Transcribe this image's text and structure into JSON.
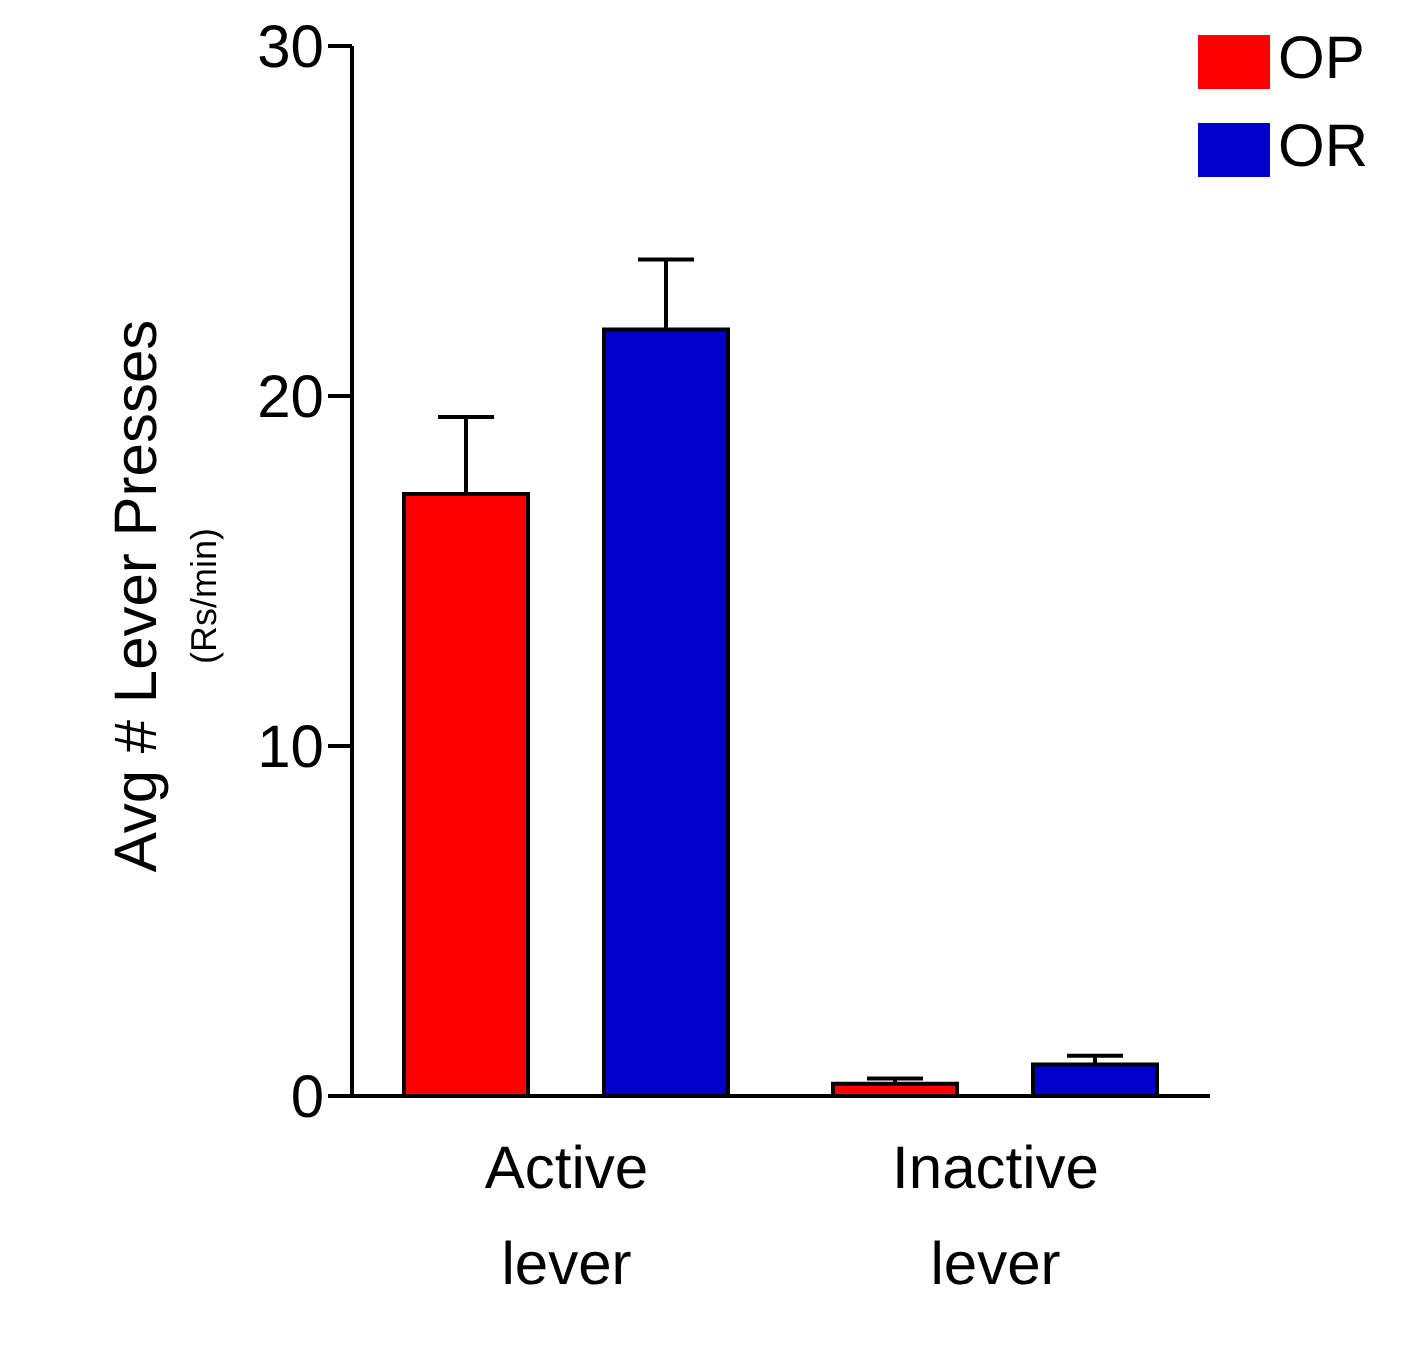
{
  "chart_data": {
    "type": "bar",
    "ylabel": "Avg # Lever Presses\n(Rs/min)",
    "categories": [
      "Active lever",
      "Inactive lever"
    ],
    "series": [
      {
        "name": "OP",
        "color": "#ff0000",
        "values": [
          17.2,
          0.35
        ],
        "errors": [
          [
            17.2,
            19.4
          ],
          [
            0.35,
            0.5
          ]
        ]
      },
      {
        "name": "OR",
        "color": "#0000cc",
        "values": [
          21.9,
          0.9
        ],
        "errors": [
          [
            21.9,
            23.9
          ],
          [
            0.9,
            1.15
          ]
        ]
      }
    ],
    "ylim": [
      0,
      30
    ],
    "yticks": [
      0,
      10,
      20,
      30
    ],
    "grid": false,
    "legend": "top right"
  }
}
